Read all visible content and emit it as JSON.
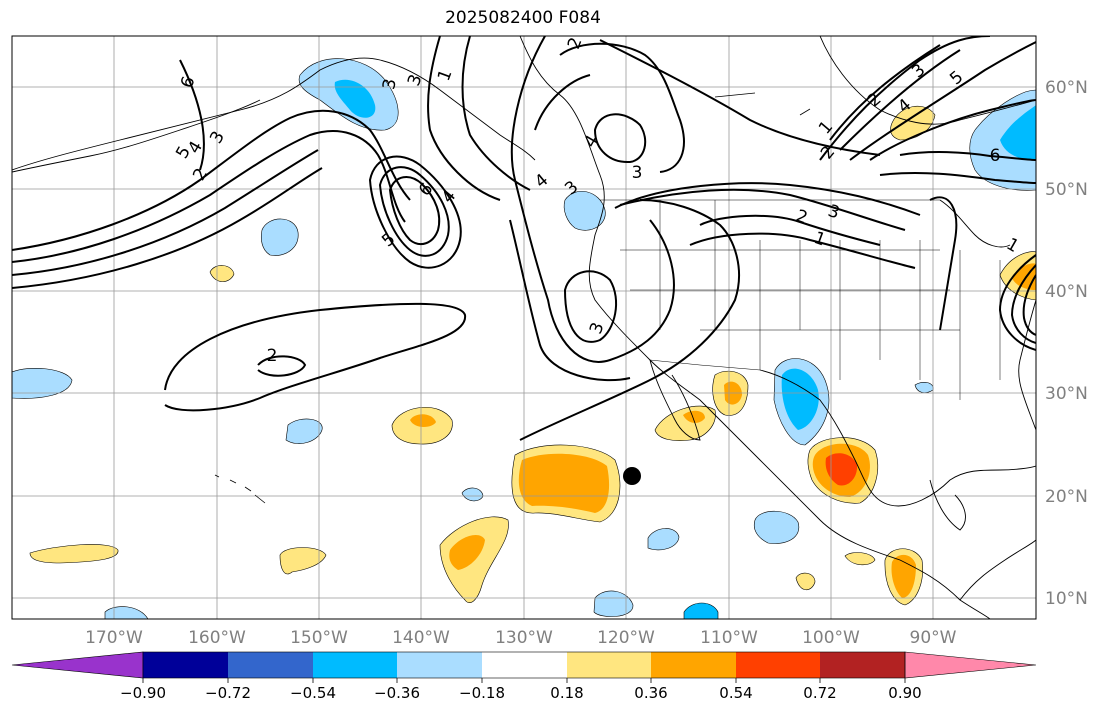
{
  "title": "2025082400 F084",
  "map": {
    "lon_labels": [
      "170°W",
      "160°W",
      "150°W",
      "140°W",
      "130°W",
      "120°W",
      "110°W",
      "100°W",
      "90°W"
    ],
    "lat_labels": [
      "60°N",
      "50°N",
      "40°N",
      "30°N",
      "20°N",
      "10°N"
    ],
    "lon_range": [
      -180,
      -80
    ],
    "lat_range": [
      8,
      65
    ],
    "contour_labels": [
      "6",
      "5",
      "4",
      "3",
      "2",
      "1",
      "3",
      "4",
      "5",
      "6",
      "4",
      "3",
      "3",
      "4",
      "2",
      "1",
      "2",
      "3",
      "2",
      "3",
      "4",
      "1",
      "2",
      "3",
      "5",
      "6",
      "3",
      "2",
      "1"
    ],
    "marker": {
      "lon": -119,
      "lat": 22
    }
  },
  "colorbar": {
    "tick_labels": [
      "−0.90",
      "−0.72",
      "−0.54",
      "−0.36",
      "−0.18",
      "0.18",
      "0.36",
      "0.54",
      "0.72",
      "0.90"
    ],
    "colors": [
      "#9933cc",
      "#000099",
      "#3366cc",
      "#00bbff",
      "#aaddff",
      "#ffffff",
      "#ffe680",
      "#ffa500",
      "#ff4000",
      "#b22222",
      "#ff88aa"
    ]
  }
}
